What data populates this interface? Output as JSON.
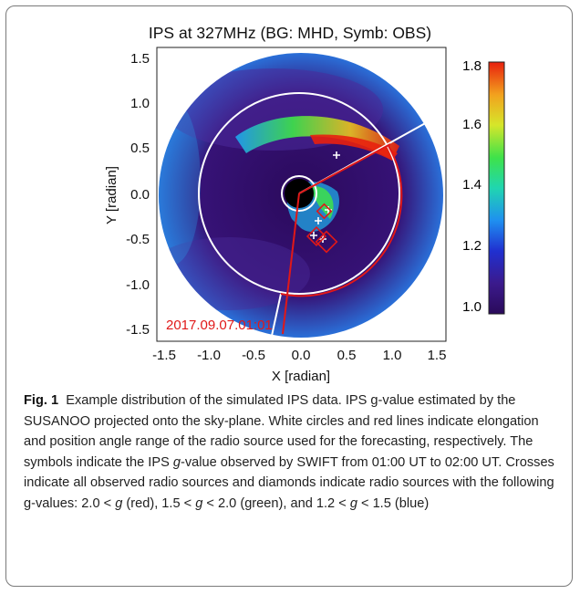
{
  "figure": {
    "title": "IPS at 327MHz (BG: MHD, Symb: OBS)",
    "timestamp": "2017.09.07.01:01",
    "chart_data": {
      "type": "heatmap",
      "title": "IPS at 327MHz (BG: MHD, Symb: OBS)",
      "xlabel": "X [radian]",
      "ylabel": "Y [radian]",
      "xlim": [
        -1.7,
        1.7
      ],
      "ylim": [
        -1.7,
        1.7
      ],
      "x_ticks": [
        "-1.5",
        "-1.0",
        "-0.5",
        "0.0",
        "0.5",
        "1.0",
        "1.5"
      ],
      "y_ticks": [
        "1.5",
        "1.0",
        "0.5",
        "0.0",
        "-0.5",
        "-1.0",
        "-1.5"
      ],
      "colorbar": {
        "min": 1.0,
        "max": 1.8,
        "ticks": [
          "1.8",
          "1.6",
          "1.4",
          "1.2",
          "1.0"
        ],
        "colors": [
          "#2a0a5a",
          "#3b1a8c",
          "#2030d0",
          "#1f8ff0",
          "#20d6b0",
          "#3ee24a",
          "#d6e62a",
          "#f2a21e",
          "#e8200e"
        ]
      },
      "elongation_circles_radius": [
        0.2,
        1.2
      ],
      "position_angle_lines": [
        {
          "x": 0.33,
          "y": 0.38
        },
        {
          "x": -0.15,
          "y": -1.5
        },
        {
          "x": 1.0,
          "y": 0.55
        }
      ],
      "observations": {
        "crosses": [
          {
            "x": 0.32,
            "y": 0.39,
            "color": "white"
          },
          {
            "x": 0.23,
            "y": -0.32,
            "color": "white"
          },
          {
            "x": 0.15,
            "y": -0.43,
            "color": "white"
          },
          {
            "x": 0.2,
            "y": -0.47,
            "color": "white"
          },
          {
            "x": 0.25,
            "y": -0.58,
            "color": "white"
          },
          {
            "x": 0.31,
            "y": -0.54,
            "color": "white"
          },
          {
            "x": 0.17,
            "y": -0.39,
            "color": "white"
          }
        ],
        "diamonds": [
          {
            "x": 0.26,
            "y": -0.58,
            "g": "2.0<g",
            "color": "red"
          },
          {
            "x": 0.35,
            "y": -0.63,
            "g": "2.0<g",
            "color": "red"
          },
          {
            "x": 0.22,
            "y": -0.33,
            "g": "2.0<g",
            "color": "red"
          }
        ]
      }
    }
  },
  "caption": {
    "label": "Fig. 1",
    "part1": "Example distribution of the simulated IPS data. IPS g-value estimated by the SUSANOO projected onto the sky-plane. White circles and red lines indicate elongation and position angle range of the radio source used for the forecasting, respectively. The symbols indicate the IPS ",
    "g1": "g",
    "part2": "-value observed by SWIFT from 01:00 UT to 02:00 UT. Crosses indicate all observed radio sources and diamonds indicate radio sources with the following g-values: 2.0 < ",
    "g2": "g",
    "part3": " (red), 1.5 < ",
    "g3": "g",
    "part4": " < 2.0 (green), and 1.2 < ",
    "g4": "g",
    "part5": " < 1.5 (blue)"
  }
}
